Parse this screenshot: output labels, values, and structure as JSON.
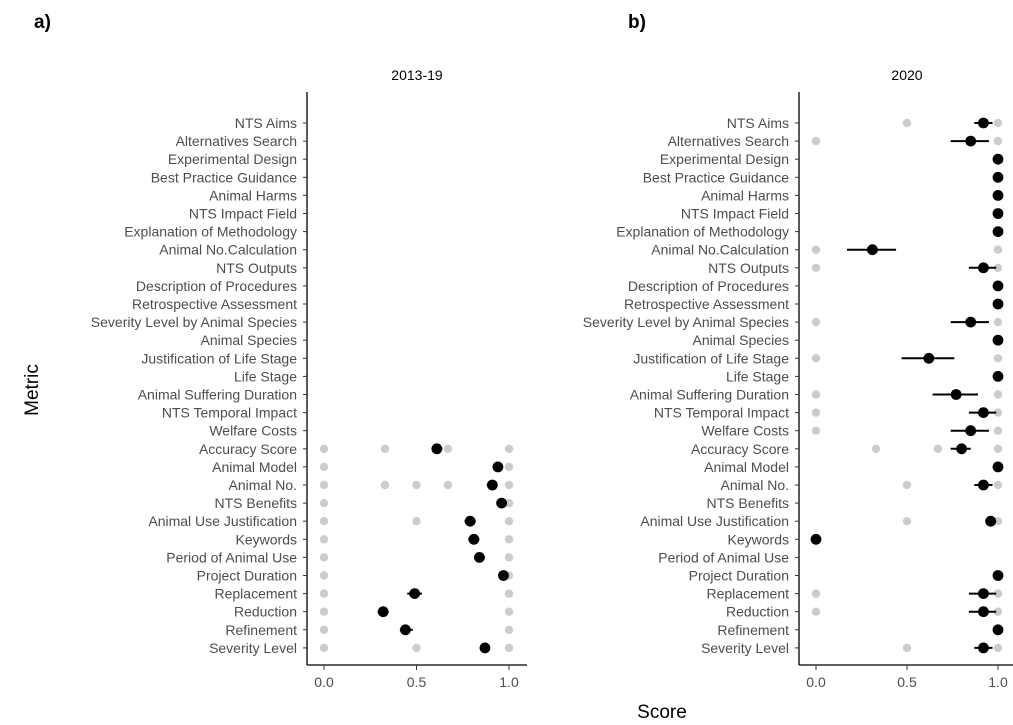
{
  "figure": {
    "panel_labels": [
      "a)",
      "b)"
    ],
    "x_axis_title": "Score",
    "y_axis_title": "Metric"
  },
  "colors": {
    "mean_point": "#000000",
    "raw_point": "#cccccc",
    "axis": "#000000",
    "label_text": "#4d4d4d"
  },
  "chart_data": [
    {
      "type": "scatter",
      "title": "2013-19",
      "xlabel": "Score",
      "ylabel": "Metric",
      "xlim": [
        0,
        1
      ],
      "xticks": [
        "0.0",
        "0.5",
        "1.0"
      ],
      "grid": false,
      "categories": [
        "NTS Aims",
        "Alternatives Search",
        "Experimental Design",
        "Best Practice Guidance",
        "Animal Harms",
        "NTS Impact Field",
        "Explanation of Methodology",
        "Animal No.Calculation",
        "NTS Outputs",
        "Description of Procedures",
        "Retrospective Assessment",
        "Severity Level by Animal Species",
        "Animal Species",
        "Justification of Life Stage",
        "Life Stage",
        "Animal Suffering Duration",
        "NTS Temporal Impact",
        "Welfare Costs",
        "Accuracy  Score",
        "Animal Model",
        "Animal No.",
        "NTS Benefits",
        "Animal Use Justification",
        "Keywords",
        "Period of Animal Use",
        "Project Duration",
        "Replacement",
        "Reduction",
        "Refinement",
        "Severity Level"
      ],
      "means": [
        {
          "metric": "Accuracy  Score",
          "mean": 0.61,
          "lo": 0.59,
          "hi": 0.64
        },
        {
          "metric": "Animal Model",
          "mean": 0.94,
          "lo": 0.92,
          "hi": 0.96
        },
        {
          "metric": "Animal No.",
          "mean": 0.91,
          "lo": 0.88,
          "hi": 0.93
        },
        {
          "metric": "NTS Benefits",
          "mean": 0.96,
          "lo": 0.95,
          "hi": 0.97
        },
        {
          "metric": "Animal Use Justification",
          "mean": 0.79,
          "lo": 0.76,
          "hi": 0.82
        },
        {
          "metric": "Keywords",
          "mean": 0.81,
          "lo": 0.78,
          "hi": 0.84
        },
        {
          "metric": "Period of Animal Use",
          "mean": 0.84,
          "lo": 0.82,
          "hi": 0.87
        },
        {
          "metric": "Project Duration",
          "mean": 0.97,
          "lo": 0.96,
          "hi": 0.98
        },
        {
          "metric": "Replacement",
          "mean": 0.49,
          "lo": 0.45,
          "hi": 0.53
        },
        {
          "metric": "Reduction",
          "mean": 0.32,
          "lo": 0.29,
          "hi": 0.35
        },
        {
          "metric": "Refinement",
          "mean": 0.44,
          "lo": 0.41,
          "hi": 0.48
        },
        {
          "metric": "Severity Level",
          "mean": 0.87,
          "lo": 0.85,
          "hi": 0.89
        }
      ],
      "raw_scores": [
        {
          "metric": "Accuracy  Score",
          "values": [
            0,
            0.33,
            0.67,
            1
          ]
        },
        {
          "metric": "Animal Model",
          "values": [
            0,
            1
          ]
        },
        {
          "metric": "Animal No.",
          "values": [
            0,
            0.33,
            0.5,
            0.67,
            1
          ]
        },
        {
          "metric": "NTS Benefits",
          "values": [
            0,
            1
          ]
        },
        {
          "metric": "Animal Use Justification",
          "values": [
            0,
            0.5,
            1
          ]
        },
        {
          "metric": "Keywords",
          "values": [
            0,
            1
          ]
        },
        {
          "metric": "Period of Animal Use",
          "values": [
            0,
            1
          ]
        },
        {
          "metric": "Project Duration",
          "values": [
            0,
            1
          ]
        },
        {
          "metric": "Replacement",
          "values": [
            0,
            1
          ]
        },
        {
          "metric": "Reduction",
          "values": [
            0,
            1
          ]
        },
        {
          "metric": "Refinement",
          "values": [
            0,
            1
          ]
        },
        {
          "metric": "Severity Level",
          "values": [
            0,
            0.5,
            1
          ]
        }
      ]
    },
    {
      "type": "scatter",
      "title": "2020",
      "xlabel": "Score",
      "ylabel": "Metric",
      "xlim": [
        0,
        1
      ],
      "xticks": [
        "0.0",
        "0.5",
        "1.0"
      ],
      "grid": false,
      "categories": [
        "NTS Aims",
        "Alternatives Search",
        "Experimental Design",
        "Best Practice Guidance",
        "Animal Harms",
        "NTS Impact Field",
        "Explanation of Methodology",
        "Animal No.Calculation",
        "NTS Outputs",
        "Description of Procedures",
        "Retrospective Assessment",
        "Severity Level by Animal Species",
        "Animal Species",
        "Justification of Life Stage",
        "Life Stage",
        "Animal Suffering Duration",
        "NTS Temporal Impact",
        "Welfare Costs",
        "Accuracy  Score",
        "Animal Model",
        "Animal No.",
        "NTS Benefits",
        "Animal Use Justification",
        "Keywords",
        "Period of Animal Use",
        "Project Duration",
        "Replacement",
        "Reduction",
        "Refinement",
        "Severity Level"
      ],
      "means": [
        {
          "metric": "NTS Aims",
          "mean": 0.92,
          "lo": 0.87,
          "hi": 0.97
        },
        {
          "metric": "Alternatives Search",
          "mean": 0.85,
          "lo": 0.74,
          "hi": 0.95
        },
        {
          "metric": "Experimental Design",
          "mean": 1.0,
          "lo": 1.0,
          "hi": 1.0
        },
        {
          "metric": "Best Practice Guidance",
          "mean": 1.0,
          "lo": 1.0,
          "hi": 1.0
        },
        {
          "metric": "Animal Harms",
          "mean": 1.0,
          "lo": 1.0,
          "hi": 1.0
        },
        {
          "metric": "NTS Impact Field",
          "mean": 1.0,
          "lo": 1.0,
          "hi": 1.0
        },
        {
          "metric": "Explanation of Methodology",
          "mean": 1.0,
          "lo": 1.0,
          "hi": 1.0
        },
        {
          "metric": "Animal No.Calculation",
          "mean": 0.31,
          "lo": 0.17,
          "hi": 0.44
        },
        {
          "metric": "NTS Outputs",
          "mean": 0.92,
          "lo": 0.84,
          "hi": 0.99
        },
        {
          "metric": "Description of Procedures",
          "mean": 1.0,
          "lo": 1.0,
          "hi": 1.0
        },
        {
          "metric": "Retrospective Assessment",
          "mean": 1.0,
          "lo": 1.0,
          "hi": 1.0
        },
        {
          "metric": "Severity Level by Animal Species",
          "mean": 0.85,
          "lo": 0.74,
          "hi": 0.95
        },
        {
          "metric": "Animal Species",
          "mean": 1.0,
          "lo": 1.0,
          "hi": 1.0
        },
        {
          "metric": "Justification of Life Stage",
          "mean": 0.62,
          "lo": 0.47,
          "hi": 0.76
        },
        {
          "metric": "Life Stage",
          "mean": 1.0,
          "lo": 1.0,
          "hi": 1.0
        },
        {
          "metric": "Animal Suffering Duration",
          "mean": 0.77,
          "lo": 0.64,
          "hi": 0.89
        },
        {
          "metric": "NTS Temporal Impact",
          "mean": 0.92,
          "lo": 0.84,
          "hi": 0.99
        },
        {
          "metric": "Welfare Costs",
          "mean": 0.85,
          "lo": 0.74,
          "hi": 0.95
        },
        {
          "metric": "Accuracy  Score",
          "mean": 0.8,
          "lo": 0.74,
          "hi": 0.85
        },
        {
          "metric": "Animal Model",
          "mean": 1.0,
          "lo": 1.0,
          "hi": 1.0
        },
        {
          "metric": "Animal No.",
          "mean": 0.92,
          "lo": 0.87,
          "hi": 0.97
        },
        {
          "metric": "Animal Use Justification",
          "mean": 0.96,
          "lo": 0.93,
          "hi": 0.99
        },
        {
          "metric": "Keywords",
          "mean": 0.0,
          "lo": 0.0,
          "hi": 0.0
        },
        {
          "metric": "Project Duration",
          "mean": 1.0,
          "lo": 1.0,
          "hi": 1.0
        },
        {
          "metric": "Replacement",
          "mean": 0.92,
          "lo": 0.84,
          "hi": 0.99
        },
        {
          "metric": "Reduction",
          "mean": 0.92,
          "lo": 0.84,
          "hi": 0.99
        },
        {
          "metric": "Refinement",
          "mean": 1.0,
          "lo": 1.0,
          "hi": 1.0
        },
        {
          "metric": "Severity Level",
          "mean": 0.92,
          "lo": 0.87,
          "hi": 0.97
        }
      ],
      "raw_scores": [
        {
          "metric": "NTS Aims",
          "values": [
            0.5,
            1
          ]
        },
        {
          "metric": "Alternatives Search",
          "values": [
            0,
            1
          ]
        },
        {
          "metric": "Animal No.Calculation",
          "values": [
            0,
            1
          ]
        },
        {
          "metric": "NTS Outputs",
          "values": [
            0,
            1
          ]
        },
        {
          "metric": "Severity Level by Animal Species",
          "values": [
            0,
            1
          ]
        },
        {
          "metric": "Justification of Life Stage",
          "values": [
            0,
            1
          ]
        },
        {
          "metric": "Animal Suffering Duration",
          "values": [
            0,
            1
          ]
        },
        {
          "metric": "NTS Temporal Impact",
          "values": [
            0,
            1
          ]
        },
        {
          "metric": "Welfare Costs",
          "values": [
            0,
            1
          ]
        },
        {
          "metric": "Accuracy  Score",
          "values": [
            0.33,
            0.67,
            1
          ]
        },
        {
          "metric": "Animal No.",
          "values": [
            0.5,
            1
          ]
        },
        {
          "metric": "Animal Use Justification",
          "values": [
            0.5,
            1
          ]
        },
        {
          "metric": "Replacement",
          "values": [
            0,
            1
          ]
        },
        {
          "metric": "Reduction",
          "values": [
            0,
            1
          ]
        },
        {
          "metric": "Severity Level",
          "values": [
            0.5,
            1
          ]
        }
      ]
    }
  ]
}
